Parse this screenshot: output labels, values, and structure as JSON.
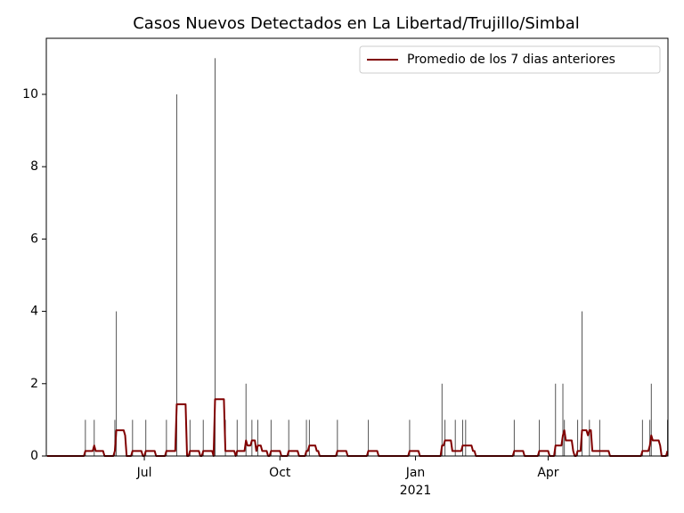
{
  "chart_data": {
    "type": "bar",
    "title": "Casos Nuevos Detectados en La Libertad/Trujillo/Simbal",
    "xlim": [
      -66.5,
      355.3
    ],
    "ylim": [
      0,
      11.55
    ],
    "xticks": [
      {
        "value": 0,
        "label": "Jul"
      },
      {
        "value": 92,
        "label": "Oct"
      },
      {
        "value": 184,
        "label": "Jan"
      },
      {
        "value": 274,
        "label": "Apr"
      }
    ],
    "year_labels": [
      {
        "value": 184,
        "label": "2021"
      }
    ],
    "yticks": [
      0,
      2,
      4,
      6,
      8,
      10
    ],
    "legend": "upper right",
    "series": [
      {
        "type": "bar",
        "color": "#555555",
        "x": [
          -40,
          -34,
          -20,
          -19,
          -8,
          1,
          15,
          22,
          31,
          40,
          48,
          55,
          63,
          69,
          73,
          77,
          86,
          98,
          110,
          112,
          131,
          152,
          180,
          202,
          204,
          211,
          216,
          218,
          251,
          268,
          279,
          284,
          285,
          294,
          297,
          302,
          309,
          338,
          343,
          344,
          355
        ],
        "values": [
          1,
          1,
          1,
          4,
          1,
          1,
          1,
          10,
          1,
          1,
          11,
          1,
          1,
          2,
          1,
          1,
          1,
          1,
          1,
          1,
          1,
          1,
          1,
          2,
          1,
          1,
          1,
          1,
          1,
          1,
          2,
          2,
          1,
          1,
          4,
          1,
          1,
          1,
          1,
          2,
          1
        ]
      },
      {
        "type": "line",
        "name": "Promedio de los 7 dias anteriores",
        "color": "#800000",
        "x": [
          -66,
          -41,
          -40,
          -35,
          -34,
          -33,
          -28,
          -27,
          -21,
          -20,
          -19,
          -14,
          -13,
          -12,
          -9,
          -8,
          -2,
          -1,
          0,
          1,
          7,
          8,
          14,
          15,
          21,
          22,
          28,
          29,
          30,
          31,
          37,
          38,
          39,
          40,
          46,
          47,
          48,
          54,
          55,
          61,
          62,
          63,
          68,
          69,
          70,
          72,
          73,
          75,
          76,
          77,
          79,
          80,
          83,
          84,
          85,
          86,
          92,
          93,
          97,
          98,
          104,
          105,
          109,
          110,
          111,
          112,
          116,
          117,
          118,
          119,
          130,
          131,
          137,
          138,
          151,
          152,
          158,
          159,
          179,
          180,
          186,
          187,
          201,
          202,
          203,
          204,
          208,
          209,
          215,
          216,
          222,
          223,
          224,
          225,
          250,
          251,
          257,
          258,
          267,
          268,
          274,
          275,
          278,
          279,
          283,
          284,
          285,
          286,
          290,
          291,
          292,
          293,
          294,
          296,
          297,
          300,
          301,
          302,
          303,
          304,
          315,
          316,
          337,
          338,
          342,
          343,
          344,
          345,
          349,
          350,
          351,
          354,
          355
        ],
        "values": [
          0,
          0,
          0.14,
          0.14,
          0.29,
          0.14,
          0.14,
          0,
          0,
          0.14,
          0.71,
          0.71,
          0.57,
          0,
          0,
          0.14,
          0.14,
          0,
          0,
          0.14,
          0.14,
          0,
          0,
          0.14,
          0.14,
          1.43,
          1.43,
          0,
          0,
          0.14,
          0.14,
          0,
          0,
          0.14,
          0.14,
          0,
          1.57,
          1.57,
          0.14,
          0.14,
          0,
          0.14,
          0.14,
          0.43,
          0.29,
          0.29,
          0.43,
          0.43,
          0.14,
          0.29,
          0.29,
          0.14,
          0.14,
          0,
          0,
          0.14,
          0.14,
          0,
          0,
          0.14,
          0.14,
          0,
          0,
          0.14,
          0.14,
          0.29,
          0.29,
          0.14,
          0.14,
          0,
          0,
          0.14,
          0.14,
          0,
          0,
          0.14,
          0.14,
          0,
          0,
          0.14,
          0.14,
          0,
          0,
          0.29,
          0.29,
          0.43,
          0.43,
          0.14,
          0.14,
          0.29,
          0.29,
          0.14,
          0.14,
          0,
          0,
          0.14,
          0.14,
          0,
          0,
          0.14,
          0.14,
          0,
          0,
          0.29,
          0.29,
          0.57,
          0.71,
          0.43,
          0.43,
          0.14,
          0,
          0,
          0.14,
          0.14,
          0.71,
          0.71,
          0.57,
          0.71,
          0.71,
          0.14,
          0.14,
          0,
          0,
          0.14,
          0.14,
          0.29,
          0.57,
          0.43,
          0.43,
          0.29,
          0,
          0,
          0.14
        ]
      }
    ]
  }
}
